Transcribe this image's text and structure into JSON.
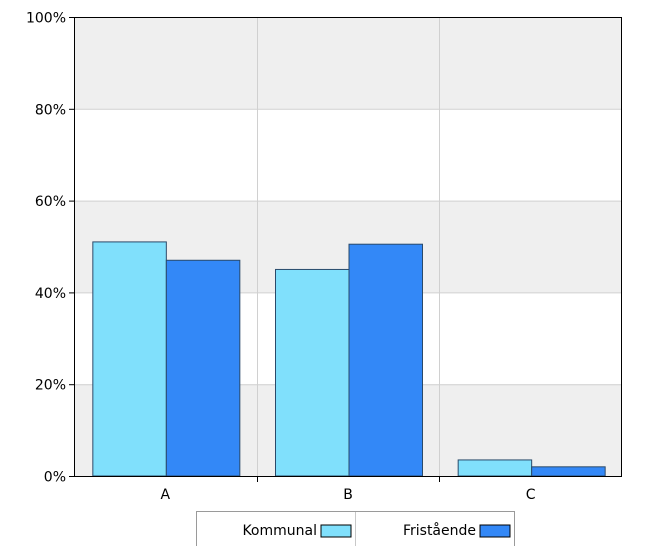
{
  "chart_data": {
    "type": "bar",
    "categories": [
      "A",
      "B",
      "C"
    ],
    "series": [
      {
        "name": "Kommunal",
        "values": [
          51,
          45,
          3.5
        ],
        "color": "#80e0fc"
      },
      {
        "name": "Fristående",
        "values": [
          47,
          50.5,
          2
        ],
        "color": "#3388f7"
      }
    ],
    "ylim": [
      0,
      100
    ],
    "yticks": [
      {
        "value": 0,
        "label": "0%"
      },
      {
        "value": 20,
        "label": "20%"
      },
      {
        "value": 40,
        "label": "40%"
      },
      {
        "value": 60,
        "label": "60%"
      },
      {
        "value": 80,
        "label": "80%"
      },
      {
        "value": 100,
        "label": "100%"
      }
    ],
    "title": "",
    "xlabel": "",
    "ylabel": "",
    "grid": true,
    "legend_position": "bottom-center",
    "colors": {
      "band_shaded": "#efefef",
      "band_plain": "#ffffff",
      "grid": "#d0d0d0",
      "axis": "#000000",
      "bar_outline": "#2a4a6a"
    }
  }
}
